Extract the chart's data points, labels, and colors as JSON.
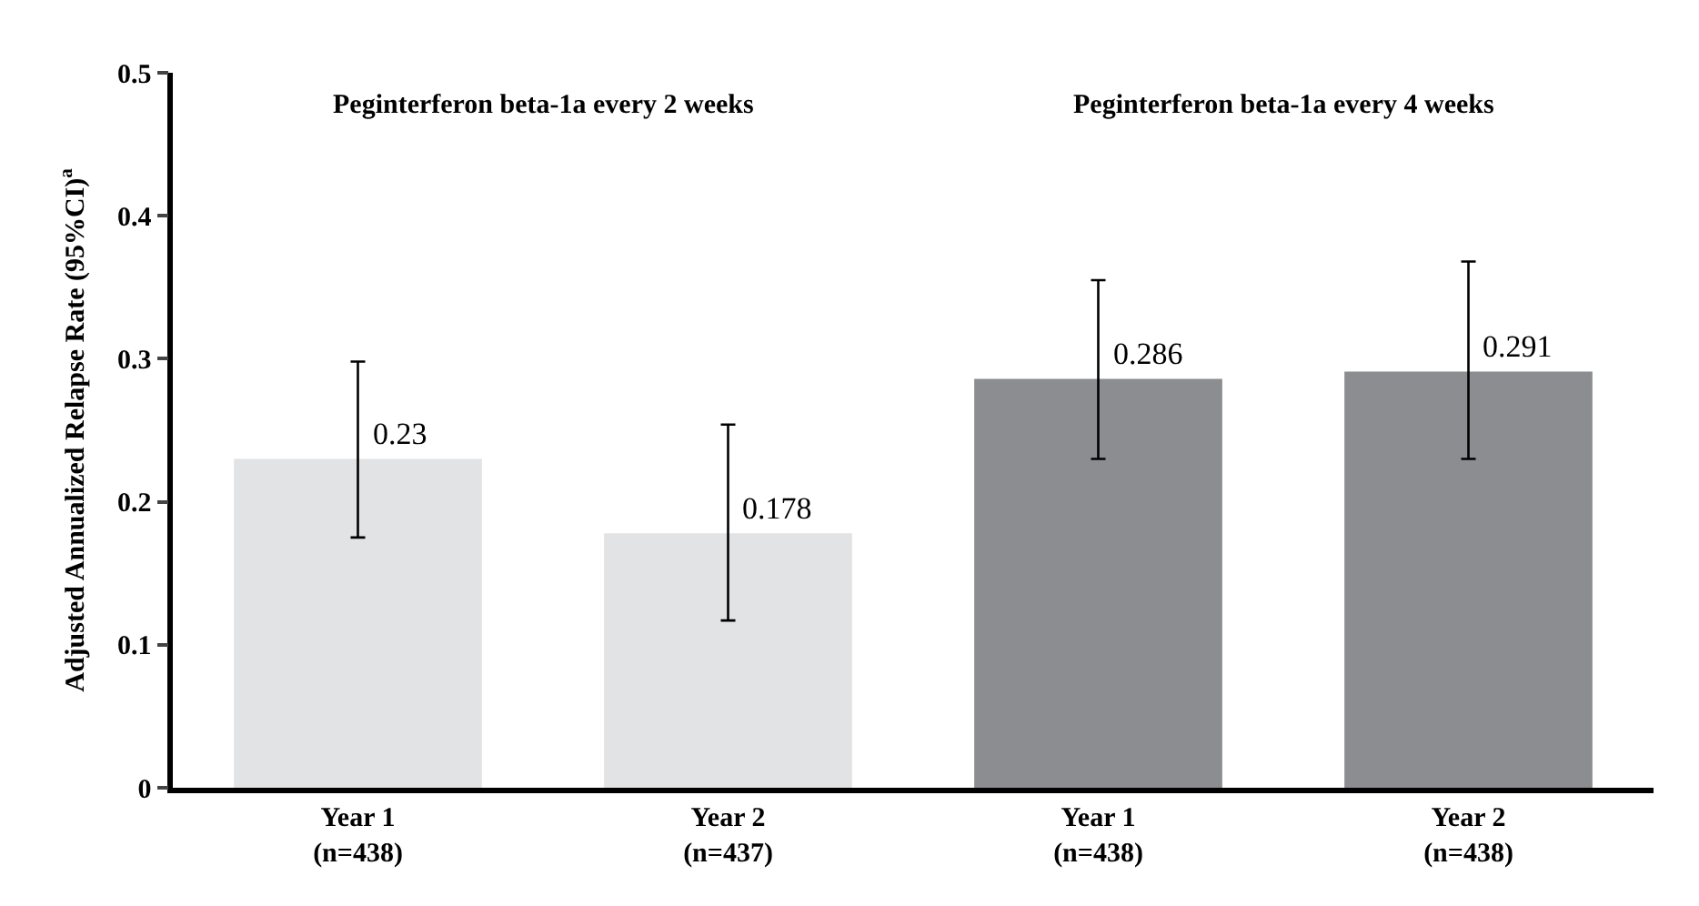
{
  "chart_data": {
    "type": "bar",
    "ylabel": "Adjusted Annualized Relapse Rate (95%CI)$^{a}$",
    "categories": [
      "Year 1\n(n=438)",
      "Year 2\n(n=437)",
      "Year 1\n(n=438)",
      "Year 2\n(n=438)"
    ],
    "values": [
      0.23,
      0.178,
      0.286,
      0.291
    ],
    "colors": [
      "#e2e3e5",
      "#e2e3e5",
      "#8c8d91",
      "#8c8d91"
    ],
    "errors": [
      [
        0.175,
        0.298
      ],
      [
        0.117,
        0.254
      ],
      [
        0.23,
        0.355
      ],
      [
        0.23,
        0.368
      ]
    ],
    "data_labels": true,
    "annotations": [
      "Peginterferon beta-1a every 2 weeks",
      "Peginterferon beta-1a every 4 weeks"
    ],
    "ylim": [
      0,
      0.5
    ],
    "yticks": [
      0,
      0.1,
      0.2,
      0.3,
      0.4,
      0.5
    ]
  }
}
